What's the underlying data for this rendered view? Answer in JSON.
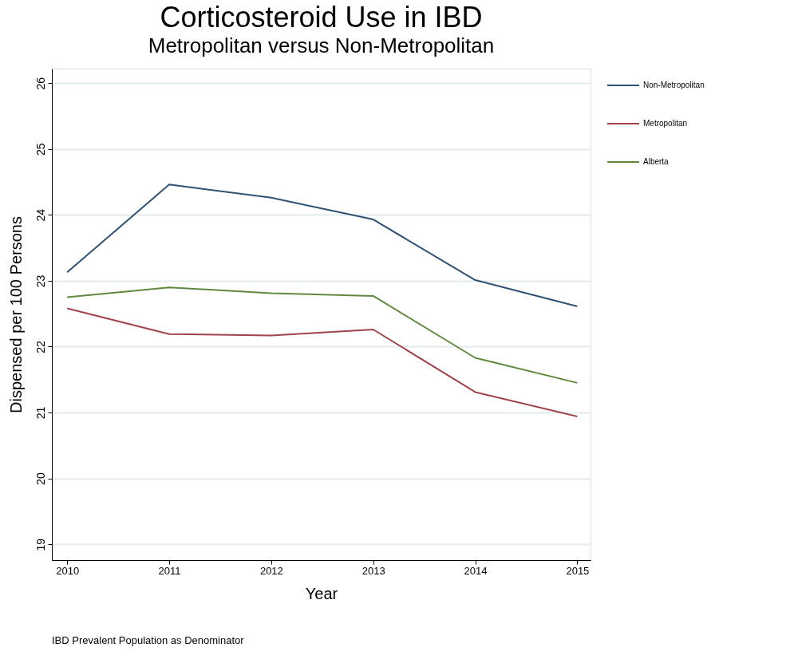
{
  "chart_data": {
    "type": "line",
    "title": "Corticosteroid Use in IBD",
    "subtitle": "Metropolitan versus Non-Metropolitan",
    "xlabel": "Year",
    "ylabel": "Dispensed per 100 Persons",
    "x": [
      2010,
      2011,
      2012,
      2013,
      2014,
      2015
    ],
    "series": [
      {
        "name": "Non-Metropolitan",
        "color": "#2e5276",
        "values": [
          23.13,
          24.46,
          24.26,
          23.93,
          23.01,
          22.61
        ]
      },
      {
        "name": "Metropolitan",
        "color": "#a0434b",
        "values": [
          22.58,
          22.19,
          22.17,
          22.26,
          21.31,
          20.94
        ]
      },
      {
        "name": "Alberta",
        "color": "#5f8a3c",
        "values": [
          22.75,
          22.9,
          22.81,
          22.77,
          21.83,
          21.45
        ]
      }
    ],
    "xlim": [
      2009.85,
      2015.13
    ],
    "xticks": [
      2010,
      2011,
      2012,
      2013,
      2014,
      2015
    ],
    "ylim": [
      18.76,
      26.22
    ],
    "yticks": [
      19,
      20,
      21,
      22,
      23,
      24,
      25,
      26
    ],
    "grid": "y",
    "legend": "top right",
    "marker": "none",
    "line_style": "solid",
    "annotations": [
      "IBD Prevalent Population as Denominator"
    ]
  }
}
